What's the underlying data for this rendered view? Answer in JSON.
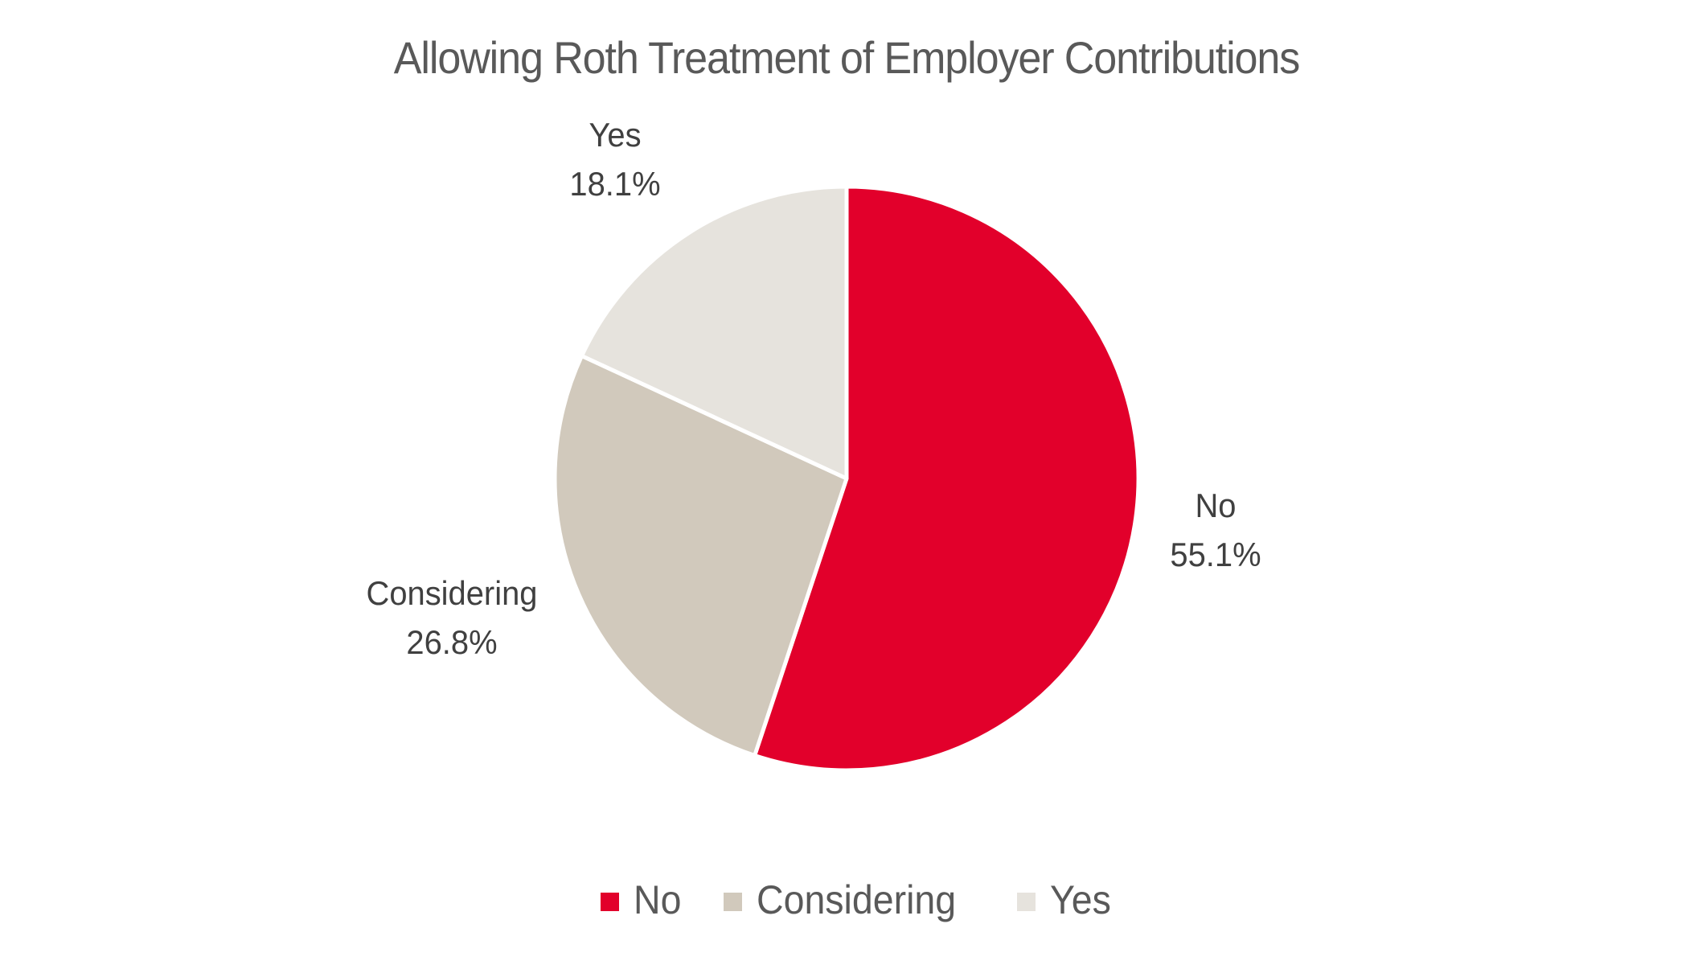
{
  "chart_data": {
    "type": "pie",
    "title": "Allowing Roth Treatment of Employer Contributions",
    "categories": [
      "No",
      "Considering",
      "Yes"
    ],
    "values": [
      55.1,
      26.8,
      18.1
    ],
    "unit": "%",
    "colors": [
      "#E2002B",
      "#D1C9BC",
      "#E6E3DD"
    ],
    "start_angle_deg": 0,
    "direction": "clockwise",
    "data_labels": [
      {
        "category": "No",
        "value": "55.1%"
      },
      {
        "category": "Considering",
        "value": "26.8%"
      },
      {
        "category": "Yes",
        "value": "18.1%"
      }
    ],
    "legend": {
      "position": "bottom",
      "entries": [
        "No",
        "Considering",
        "Yes"
      ]
    }
  },
  "title": "Allowing Roth Treatment of Employer Contributions",
  "labels": {
    "no": {
      "name": "No",
      "value": "55.1%"
    },
    "considering": {
      "name": "Considering",
      "value": "26.8%"
    },
    "yes": {
      "name": "Yes",
      "value": "18.1%"
    }
  },
  "legend": {
    "items": [
      {
        "label": "No",
        "color": "#E2002B"
      },
      {
        "label": "Considering",
        "color": "#D1C9BC"
      },
      {
        "label": "Yes",
        "color": "#E6E3DD"
      }
    ]
  }
}
